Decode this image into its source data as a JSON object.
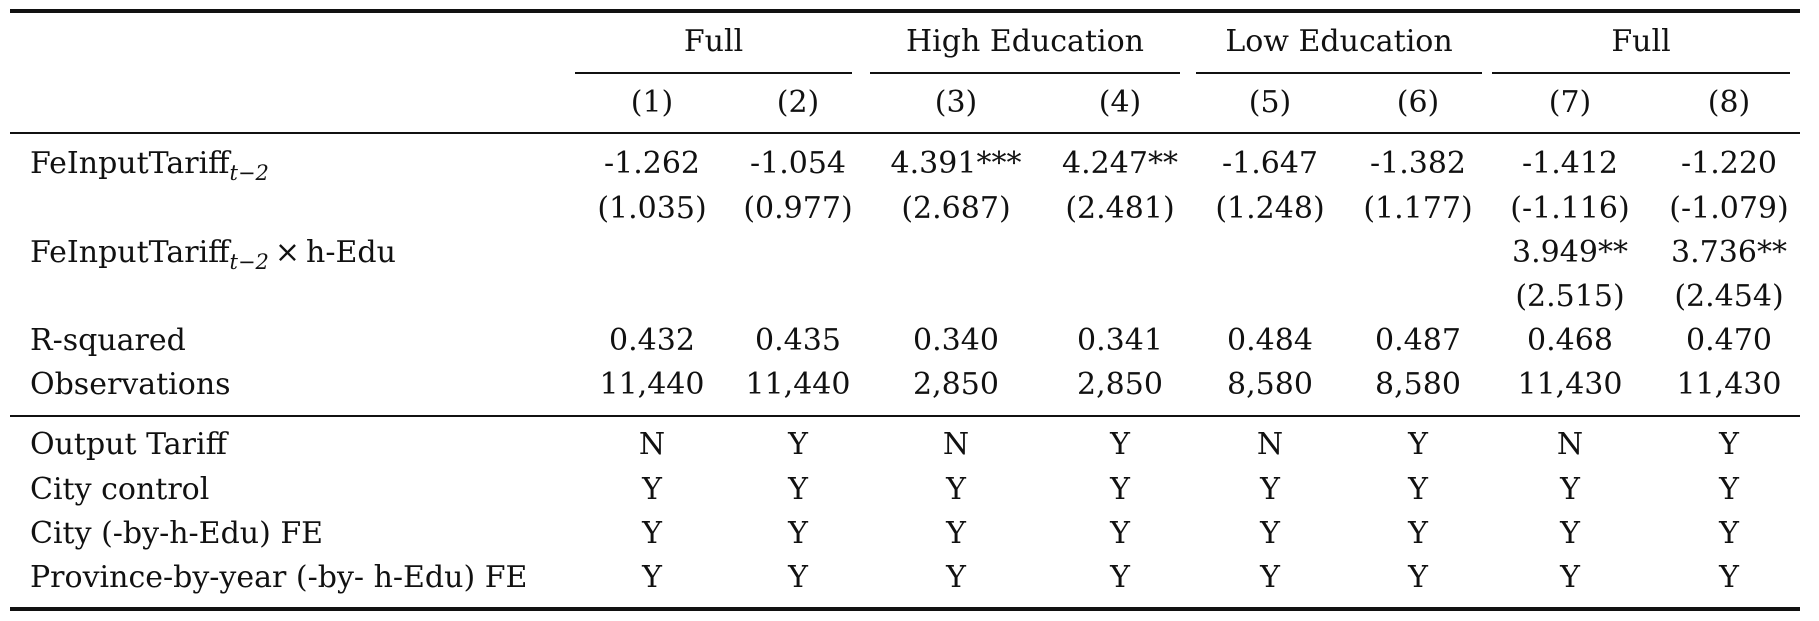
{
  "groups": [
    {
      "label": "Full"
    },
    {
      "label": "High Education"
    },
    {
      "label": "Low Education"
    },
    {
      "label": "Full"
    }
  ],
  "columns": [
    "(1)",
    "(2)",
    "(3)",
    "(4)",
    "(5)",
    "(6)",
    "(7)",
    "(8)"
  ],
  "var_tariff": {
    "base": "FeInputTariff",
    "sub": "t−2",
    "suffix": ""
  },
  "var_interact": {
    "base": "FeInputTariff",
    "sub": "t−2",
    "op": "×",
    "suffix": "h-Edu"
  },
  "rows": [
    {
      "label": "",
      "cells": [
        "-1.262",
        "-1.054",
        "4.391***",
        "4.247**",
        "-1.647",
        "-1.382",
        "-1.412",
        "-1.220"
      ]
    },
    {
      "label": "",
      "cells": [
        "(1.035)",
        "(0.977)",
        "(2.687)",
        "(2.481)",
        "(1.248)",
        "(1.177)",
        "(-1.116)",
        "(-1.079)"
      ]
    },
    {
      "label": "",
      "cells": [
        "",
        "",
        "",
        "",
        "",
        "",
        "3.949**",
        "3.736**"
      ]
    },
    {
      "label": "",
      "cells": [
        "",
        "",
        "",
        "",
        "",
        "",
        "(2.515)",
        "(2.454)"
      ]
    },
    {
      "label": "R-squared",
      "cells": [
        "0.432",
        "0.435",
        "0.340",
        "0.341",
        "0.484",
        "0.487",
        "0.468",
        "0.470"
      ]
    },
    {
      "label": "Observations",
      "cells": [
        "11,440",
        "11,440",
        "2,850",
        "2,850",
        "8,580",
        "8,580",
        "11,430",
        "11,430"
      ]
    },
    {
      "label": "Output Tariff",
      "cells": [
        "N",
        "Y",
        "N",
        "Y",
        "N",
        "Y",
        "N",
        "Y"
      ]
    },
    {
      "label": "City control",
      "cells": [
        "Y",
        "Y",
        "Y",
        "Y",
        "Y",
        "Y",
        "Y",
        "Y"
      ]
    },
    {
      "label": "City (-by-h-Edu) FE",
      "cells": [
        "Y",
        "Y",
        "Y",
        "Y",
        "Y",
        "Y",
        "Y",
        "Y"
      ]
    },
    {
      "label": "Province-by-year (-by- h-Edu) FE",
      "cells": [
        "Y",
        "Y",
        "Y",
        "Y",
        "Y",
        "Y",
        "Y",
        "Y"
      ]
    }
  ]
}
